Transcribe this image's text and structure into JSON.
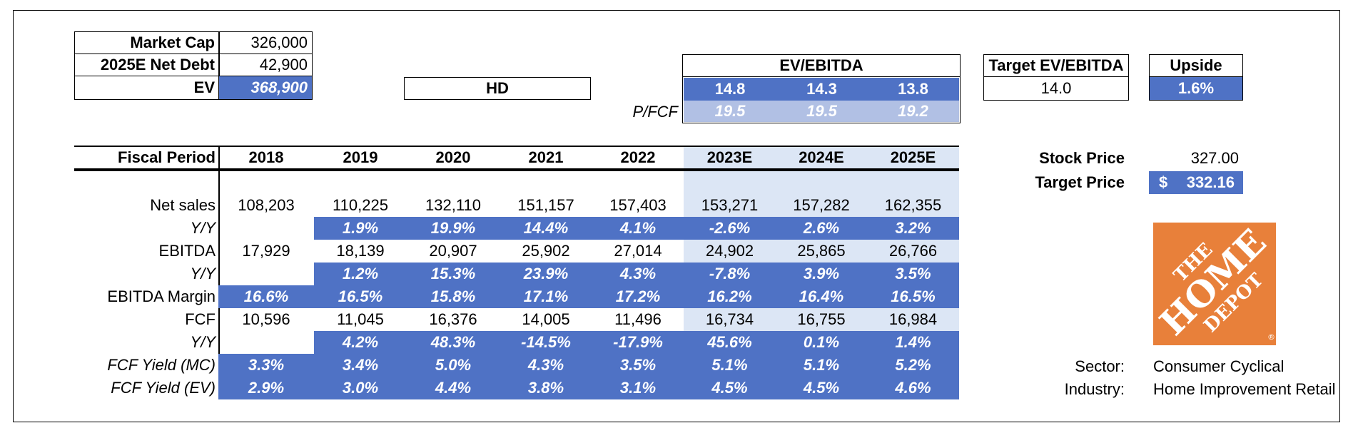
{
  "summary": {
    "market_cap_label": "Market Cap",
    "market_cap": "326,000",
    "net_debt_label": "2025E Net Debt",
    "net_debt": "42,900",
    "ev_label": "EV",
    "ev": "368,900"
  },
  "ticker": "HD",
  "ev_ebitda": {
    "header": "EV/EBITDA",
    "values": [
      "14.8",
      "14.3",
      "13.8"
    ]
  },
  "p_fcf": {
    "label": "P/FCF",
    "values": [
      "19.5",
      "19.5",
      "19.2"
    ]
  },
  "target_ev_ebitda": {
    "label": "Target EV/EBITDA",
    "value": "14.0"
  },
  "upside": {
    "label": "Upside",
    "value": "1.6%"
  },
  "stock_price": {
    "label": "Stock Price",
    "value": "327.00"
  },
  "target_price": {
    "label": "Target Price",
    "currency": "$",
    "value": "332.16"
  },
  "sector": {
    "label": "Sector:",
    "value": "Consumer Cyclical"
  },
  "industry": {
    "label": "Industry:",
    "value": "Home Improvement Retail"
  },
  "logo": {
    "line1": "THE",
    "line2": "HOME",
    "line3": "DEPOT",
    "reg": "®",
    "color": "#e8803a"
  },
  "colors": {
    "accent_blue": "#4f72c5",
    "light_blue": "#b1c0e4",
    "projection_shade": "#dce6f5"
  },
  "table": {
    "period_label": "Fiscal Period",
    "years": [
      "2018",
      "2019",
      "2020",
      "2021",
      "2022",
      "2023E",
      "2024E",
      "2025E"
    ],
    "rows": [
      {
        "label": "Net sales",
        "values": [
          "108,203",
          "110,225",
          "132,110",
          "151,157",
          "157,403",
          "153,271",
          "157,282",
          "162,355"
        ]
      },
      {
        "label": "Y/Y",
        "values": [
          "",
          "1.9%",
          "19.9%",
          "14.4%",
          "4.1%",
          "-2.6%",
          "2.6%",
          "3.2%"
        ]
      },
      {
        "label": "EBITDA",
        "values": [
          "17,929",
          "18,139",
          "20,907",
          "25,902",
          "27,014",
          "24,902",
          "25,865",
          "26,766"
        ]
      },
      {
        "label": "Y/Y",
        "values": [
          "",
          "1.2%",
          "15.3%",
          "23.9%",
          "4.3%",
          "-7.8%",
          "3.9%",
          "3.5%"
        ]
      },
      {
        "label": "EBITDA Margin",
        "values": [
          "16.6%",
          "16.5%",
          "15.8%",
          "17.1%",
          "17.2%",
          "16.2%",
          "16.4%",
          "16.5%"
        ]
      },
      {
        "label": "FCF",
        "values": [
          "10,596",
          "11,045",
          "16,376",
          "14,005",
          "11,496",
          "16,734",
          "16,755",
          "16,984"
        ]
      },
      {
        "label": "Y/Y",
        "values": [
          "",
          "4.2%",
          "48.3%",
          "-14.5%",
          "-17.9%",
          "45.6%",
          "0.1%",
          "1.4%"
        ]
      },
      {
        "label": "FCF Yield (MC)",
        "values": [
          "3.3%",
          "3.4%",
          "5.0%",
          "4.3%",
          "3.5%",
          "5.1%",
          "5.1%",
          "5.2%"
        ]
      },
      {
        "label": "FCF Yield (EV)",
        "values": [
          "2.9%",
          "3.0%",
          "4.4%",
          "3.8%",
          "3.1%",
          "4.5%",
          "4.5%",
          "4.6%"
        ]
      }
    ]
  }
}
